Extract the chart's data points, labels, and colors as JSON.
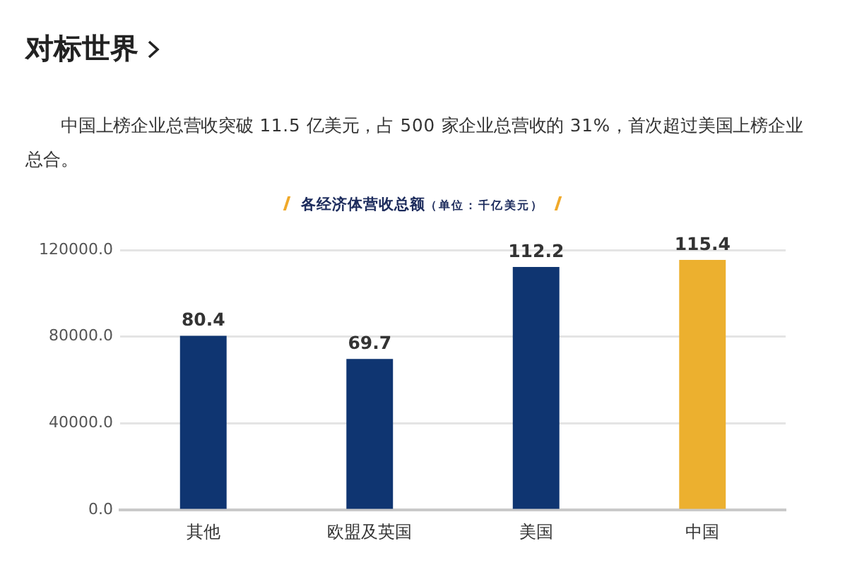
{
  "chart_data": {
    "type": "bar",
    "title": "各经济体营收总额",
    "subtitle": "（单位：千亿美元）",
    "annotations": [
      "对标世界",
      "中国上榜企业总营收突破 11.5 亿美元，占 500 家企业总营收的 31%，首次超过美国上榜企业总合。",
      {
        "text": "80.4",
        "x": "其他",
        "y": 80400
      },
      {
        "text": "69.7",
        "x": "欧盟及英国",
        "y": 69700
      },
      {
        "text": "112.2",
        "x": "美国",
        "y": 112200
      },
      {
        "text": "115.4",
        "x": "中国",
        "y": 115400
      }
    ],
    "categories": [
      "其他",
      "欧盟及英国",
      "美国",
      "中国"
    ],
    "values": [
      80400,
      69700,
      112200,
      115400
    ],
    "colors": [
      "#0f3571",
      "#0f3571",
      "#0f3571",
      "#ecb02f"
    ],
    "ylim": [
      0,
      120000
    ],
    "yticks": [
      {
        "value": 0,
        "label": "0.0"
      },
      {
        "value": 40000,
        "label": "40000.0"
      },
      {
        "value": 80000,
        "label": "80000.0"
      },
      {
        "value": 120000,
        "label": "120000.0"
      }
    ],
    "grid": "y"
  }
}
